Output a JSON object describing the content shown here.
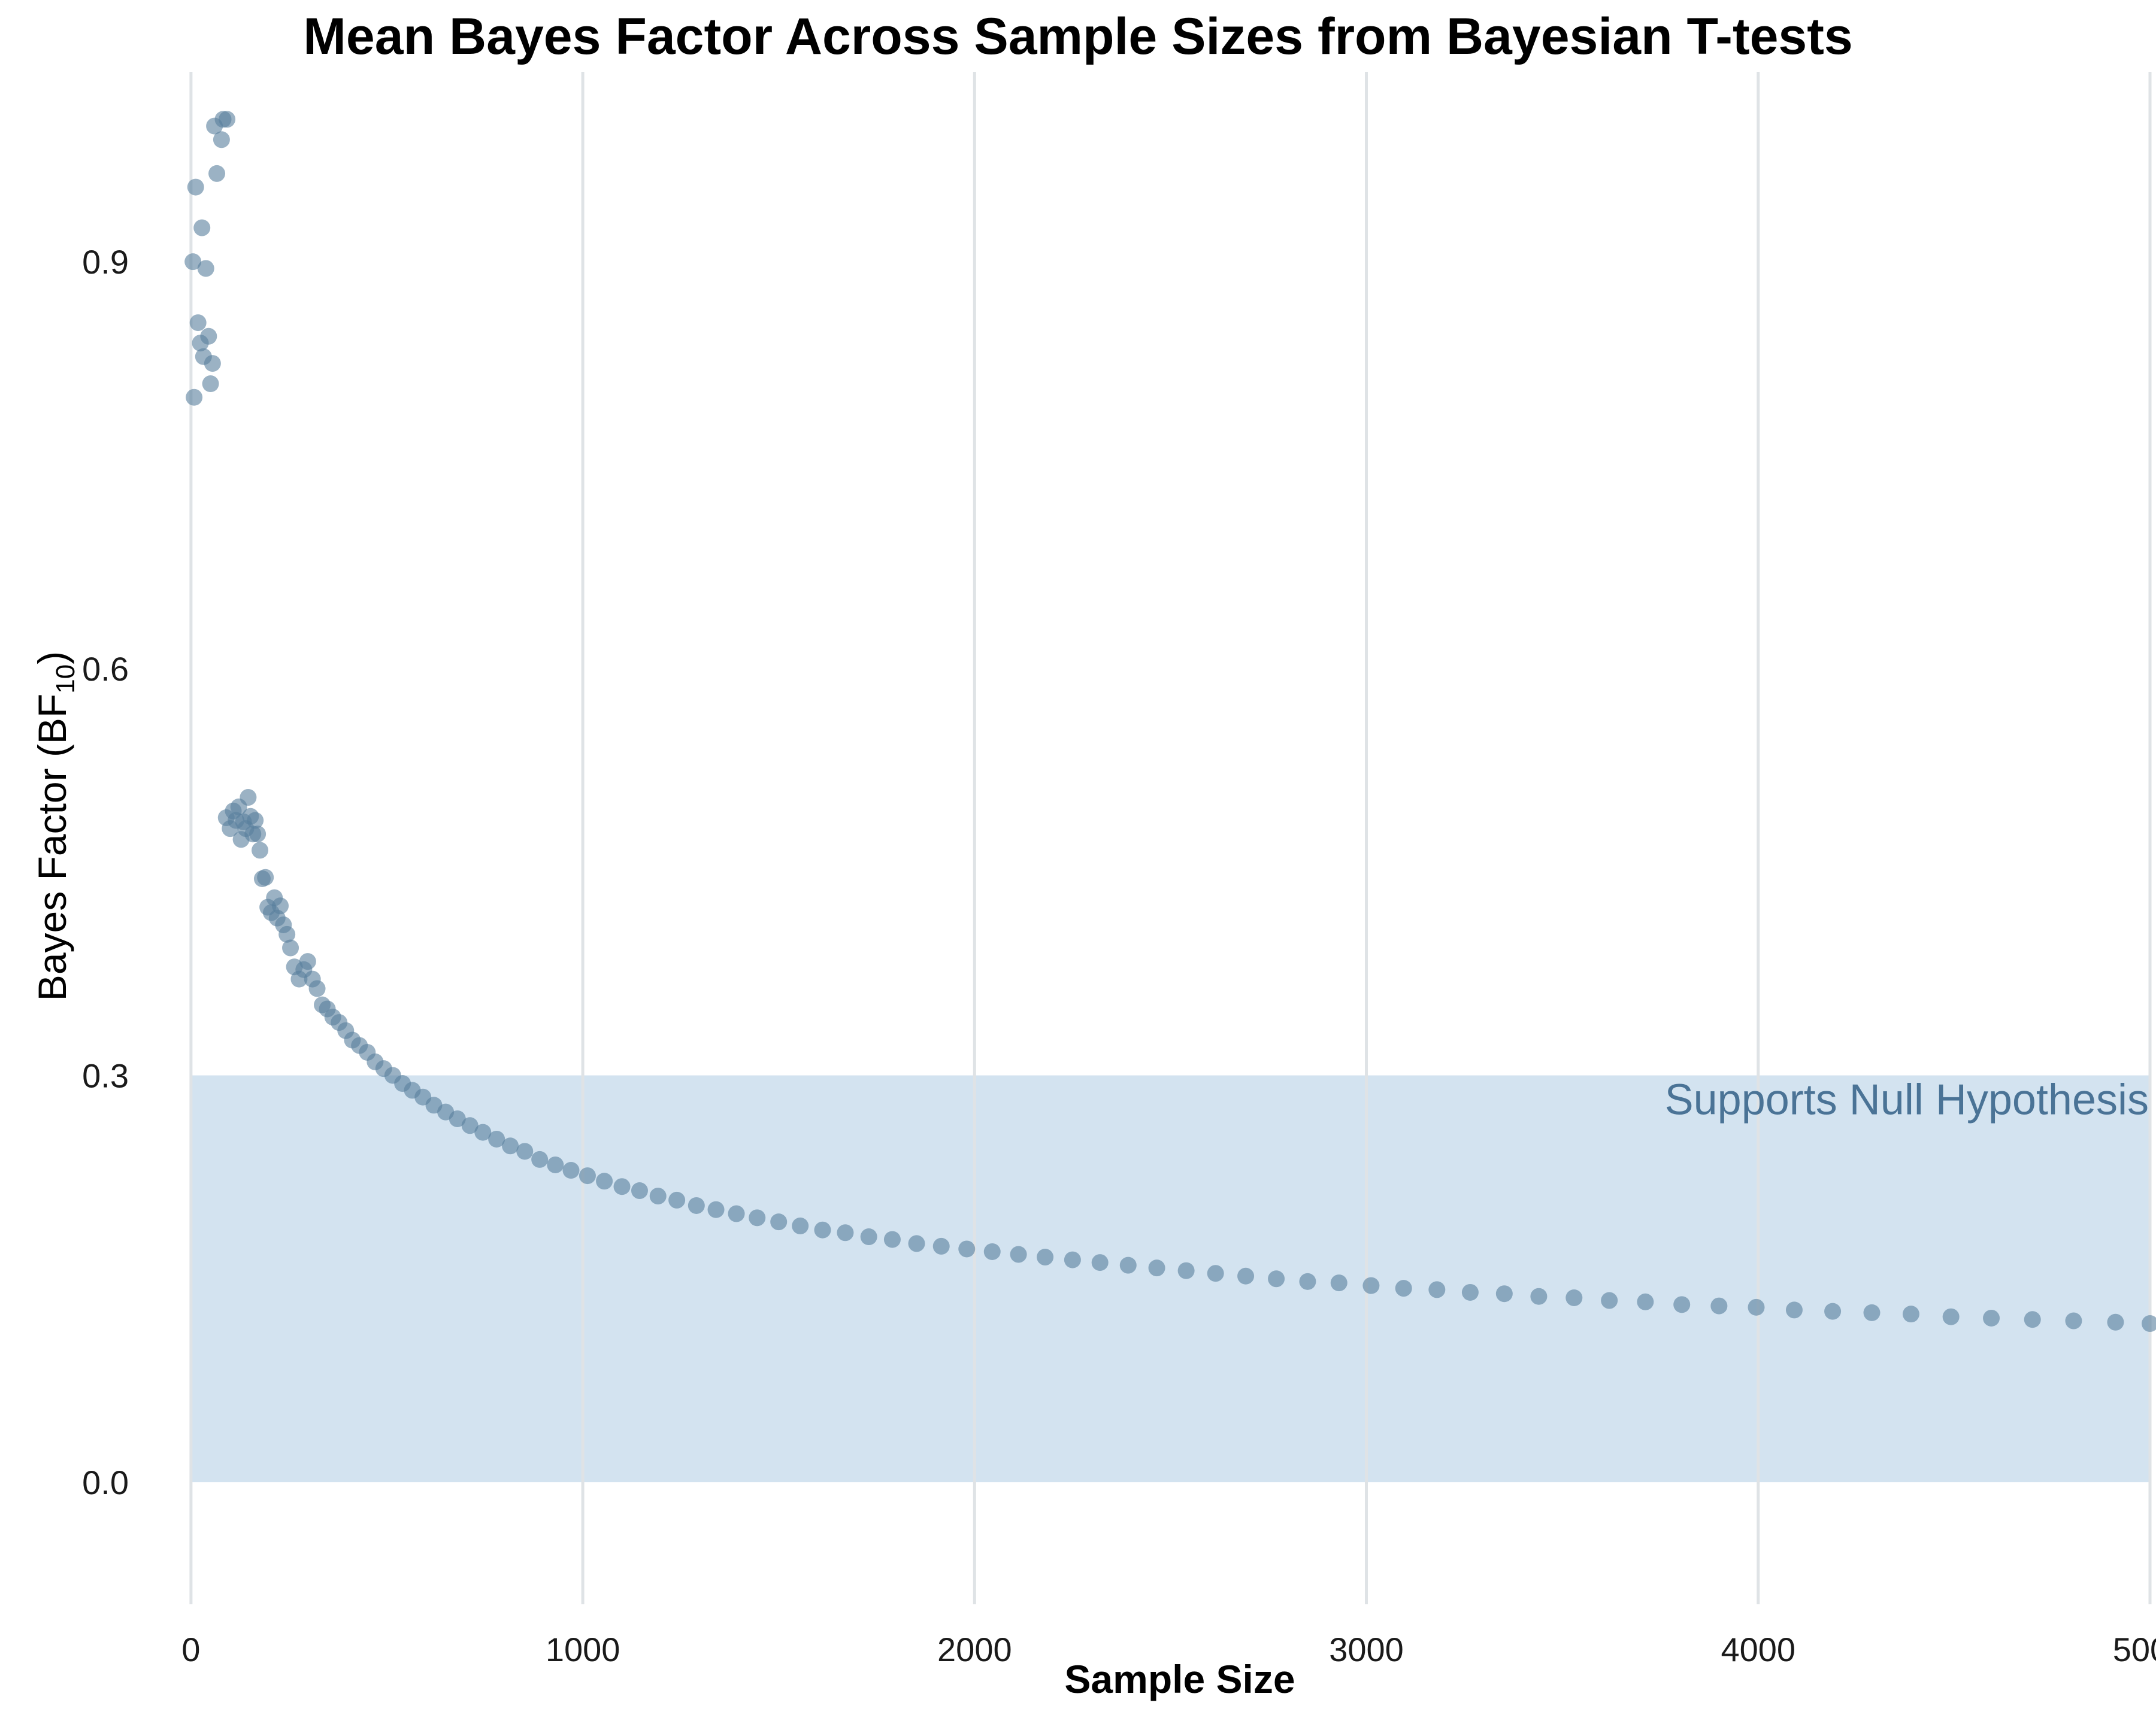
{
  "chart_data": {
    "type": "scatter",
    "title": "Mean Bayes Factor Across Sample Sizes from Bayesian T-tests",
    "xlabel": "Sample Size",
    "ylabel": "Bayes Factor (BF",
    "ylabel_subscript": "10",
    "ylabel_close": ")",
    "xlim": [
      -90,
      5000
    ],
    "ylim": [
      -0.09,
      1.04
    ],
    "x_ticks": [
      0,
      1000,
      2000,
      3000,
      4000,
      5000
    ],
    "x_tick_labels": [
      "0",
      "1000",
      "2000",
      "3000",
      "4000",
      "5000"
    ],
    "y_ticks": [
      0.0,
      0.3,
      0.6,
      0.9
    ],
    "y_tick_labels": [
      "0.0",
      "0.3",
      "0.6",
      "0.9"
    ],
    "grid": {
      "vertical": true,
      "horizontal": false
    },
    "shaded_region": {
      "x": [
        0,
        5000
      ],
      "y": [
        0,
        0.3
      ],
      "color": "#d3e3f0"
    },
    "annotation": {
      "text": "Supports Null Hypothesis",
      "x": 5000,
      "y": 0.3,
      "color": "#4a7396"
    },
    "series": [
      {
        "color": "#587f9c",
        "points": [
          [
            5,
            0.9
          ],
          [
            8,
            0.8
          ],
          [
            12,
            0.955
          ],
          [
            18,
            0.855
          ],
          [
            24,
            0.84
          ],
          [
            28,
            0.925
          ],
          [
            32,
            0.83
          ],
          [
            38,
            0.895
          ],
          [
            45,
            0.845
          ],
          [
            50,
            0.81
          ],
          [
            55,
            0.825
          ],
          [
            60,
            1.0
          ],
          [
            66,
            0.965
          ],
          [
            78,
            0.99
          ],
          [
            82,
            1.005
          ],
          [
            92,
            1.005
          ],
          [
            90,
            0.49
          ],
          [
            100,
            0.482
          ],
          [
            108,
            0.495
          ],
          [
            115,
            0.488
          ],
          [
            122,
            0.498
          ],
          [
            128,
            0.474
          ],
          [
            134,
            0.487
          ],
          [
            140,
            0.482
          ],
          [
            146,
            0.505
          ],
          [
            152,
            0.491
          ],
          [
            158,
            0.478
          ],
          [
            164,
            0.488
          ],
          [
            170,
            0.478
          ],
          [
            176,
            0.466
          ],
          [
            182,
            0.445
          ],
          [
            190,
            0.446
          ],
          [
            196,
            0.424
          ],
          [
            205,
            0.42
          ],
          [
            213,
            0.431
          ],
          [
            220,
            0.416
          ],
          [
            228,
            0.425
          ],
          [
            236,
            0.411
          ],
          [
            245,
            0.404
          ],
          [
            254,
            0.394
          ],
          [
            264,
            0.38
          ],
          [
            276,
            0.371
          ],
          [
            288,
            0.378
          ],
          [
            298,
            0.384
          ],
          [
            310,
            0.371
          ],
          [
            322,
            0.364
          ],
          [
            335,
            0.352
          ],
          [
            348,
            0.349
          ],
          [
            362,
            0.343
          ],
          [
            378,
            0.339
          ],
          [
            395,
            0.333
          ],
          [
            412,
            0.326
          ],
          [
            430,
            0.322
          ],
          [
            450,
            0.317
          ],
          [
            470,
            0.31
          ],
          [
            492,
            0.305
          ],
          [
            515,
            0.3
          ],
          [
            540,
            0.294
          ],
          [
            565,
            0.289
          ],
          [
            592,
            0.284
          ],
          [
            620,
            0.278
          ],
          [
            650,
            0.273
          ],
          [
            680,
            0.268
          ],
          [
            712,
            0.263
          ],
          [
            745,
            0.258
          ],
          [
            780,
            0.253
          ],
          [
            815,
            0.248
          ],
          [
            852,
            0.244
          ],
          [
            890,
            0.238
          ],
          [
            930,
            0.234
          ],
          [
            970,
            0.23
          ],
          [
            1012,
            0.226
          ],
          [
            1055,
            0.222
          ],
          [
            1100,
            0.218
          ],
          [
            1145,
            0.215
          ],
          [
            1192,
            0.211
          ],
          [
            1240,
            0.208
          ],
          [
            1290,
            0.204
          ],
          [
            1340,
            0.201
          ],
          [
            1392,
            0.198
          ],
          [
            1445,
            0.195
          ],
          [
            1500,
            0.192
          ],
          [
            1555,
            0.189
          ],
          [
            1612,
            0.186
          ],
          [
            1670,
            0.184
          ],
          [
            1730,
            0.181
          ],
          [
            1790,
            0.179
          ],
          [
            1852,
            0.176
          ],
          [
            1915,
            0.174
          ],
          [
            1980,
            0.172
          ],
          [
            2045,
            0.17
          ],
          [
            2112,
            0.168
          ],
          [
            2180,
            0.166
          ],
          [
            2250,
            0.164
          ],
          [
            2320,
            0.162
          ],
          [
            2392,
            0.16
          ],
          [
            2465,
            0.158
          ],
          [
            2540,
            0.156
          ],
          [
            2615,
            0.154
          ],
          [
            2692,
            0.152
          ],
          [
            2770,
            0.15
          ],
          [
            2850,
            0.148
          ],
          [
            2930,
            0.147
          ],
          [
            3012,
            0.145
          ],
          [
            3095,
            0.143
          ],
          [
            3180,
            0.142
          ],
          [
            3265,
            0.14
          ],
          [
            3352,
            0.139
          ],
          [
            3440,
            0.137
          ],
          [
            3530,
            0.136
          ],
          [
            3620,
            0.134
          ],
          [
            3712,
            0.133
          ],
          [
            3805,
            0.131
          ],
          [
            3900,
            0.13
          ],
          [
            3995,
            0.129
          ],
          [
            4092,
            0.127
          ],
          [
            4190,
            0.126
          ],
          [
            4290,
            0.125
          ],
          [
            4390,
            0.124
          ],
          [
            4492,
            0.122
          ],
          [
            4595,
            0.121
          ],
          [
            4700,
            0.12
          ],
          [
            4805,
            0.119
          ],
          [
            4912,
            0.118
          ],
          [
            5000,
            0.117
          ]
        ]
      }
    ]
  }
}
